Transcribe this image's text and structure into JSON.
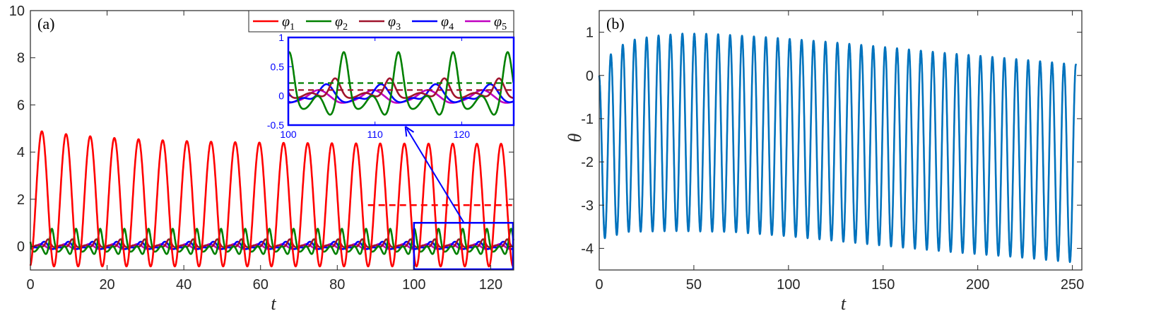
{
  "chart_data": [
    {
      "id": "a",
      "type": "line",
      "panel_label": "(a)",
      "xlabel": "t",
      "ylabel": "",
      "xlim": [
        0,
        126
      ],
      "ylim": [
        -1,
        10
      ],
      "xticks": [
        0,
        20,
        40,
        60,
        80,
        100,
        120
      ],
      "yticks": [
        0,
        2,
        4,
        6,
        8,
        10
      ],
      "legend_position": "top-right",
      "series": [
        {
          "name": "φ1",
          "base": "φ",
          "sub": "1",
          "color": "#ff0000",
          "period": 6.3,
          "peak_first": 4.95,
          "peak_last": 4.35,
          "trough": -0.85,
          "mean": 1.75
        },
        {
          "name": "φ2",
          "base": "φ",
          "sub": "2",
          "color": "#008000",
          "period": 6.3,
          "peak": 0.75,
          "trough": -0.35,
          "mean": 0.22
        },
        {
          "name": "φ3",
          "base": "φ",
          "sub": "3",
          "color": "#a0142d",
          "period": 6.3,
          "peak": 0.3,
          "trough": -0.1,
          "mean": 0.1
        },
        {
          "name": "φ4",
          "base": "φ",
          "sub": "4",
          "color": "#0000ff",
          "period": 6.3,
          "peak": 0.2,
          "trough": -0.18
        },
        {
          "name": "φ5",
          "base": "φ",
          "sub": "5",
          "color": "#c000c0",
          "period": 6.3,
          "peak": 0.1,
          "trough": -0.1
        }
      ],
      "mean_lines": [
        {
          "series": "φ1",
          "value": 1.75,
          "x_range": [
            88,
            126
          ],
          "style": "dashed"
        }
      ],
      "zoom_box": {
        "x_range": [
          100,
          126
        ],
        "y_range": [
          -1,
          1
        ]
      },
      "inset": {
        "xlim": [
          100,
          126
        ],
        "ylim": [
          -0.5,
          1
        ],
        "xticks": [
          100,
          110,
          120
        ],
        "yticks": [
          -0.5,
          0,
          0.5,
          1
        ],
        "mean_lines": [
          {
            "series": "φ2",
            "value": 0.22,
            "style": "dashed"
          },
          {
            "series": "φ3",
            "value": 0.1,
            "style": "dashed"
          }
        ]
      }
    },
    {
      "id": "b",
      "type": "line",
      "panel_label": "(b)",
      "xlabel": "t",
      "ylabel": "θ",
      "xlim": [
        0,
        255
      ],
      "ylim": [
        -4.5,
        1.5
      ],
      "xticks": [
        0,
        50,
        100,
        150,
        200,
        250
      ],
      "yticks": [
        -4,
        -3,
        -2,
        -1,
        0,
        1
      ],
      "series": [
        {
          "name": "θ",
          "color": "#0072bd",
          "period": 6.3,
          "envelope_peak": [
            [
              0,
              0.0
            ],
            [
              5,
              0.45
            ],
            [
              15,
              0.8
            ],
            [
              30,
              0.92
            ],
            [
              45,
              0.97
            ],
            [
              60,
              0.96
            ],
            [
              90,
              0.88
            ],
            [
              120,
              0.78
            ],
            [
              150,
              0.66
            ],
            [
              180,
              0.53
            ],
            [
              210,
              0.42
            ],
            [
              240,
              0.3
            ],
            [
              252,
              0.25
            ]
          ],
          "envelope_trough": [
            [
              0,
              -3.8
            ],
            [
              15,
              -3.62
            ],
            [
              40,
              -3.6
            ],
            [
              70,
              -3.62
            ],
            [
              100,
              -3.72
            ],
            [
              130,
              -3.85
            ],
            [
              160,
              -3.98
            ],
            [
              190,
              -4.1
            ],
            [
              220,
              -4.2
            ],
            [
              252,
              -4.33
            ]
          ]
        }
      ]
    }
  ]
}
